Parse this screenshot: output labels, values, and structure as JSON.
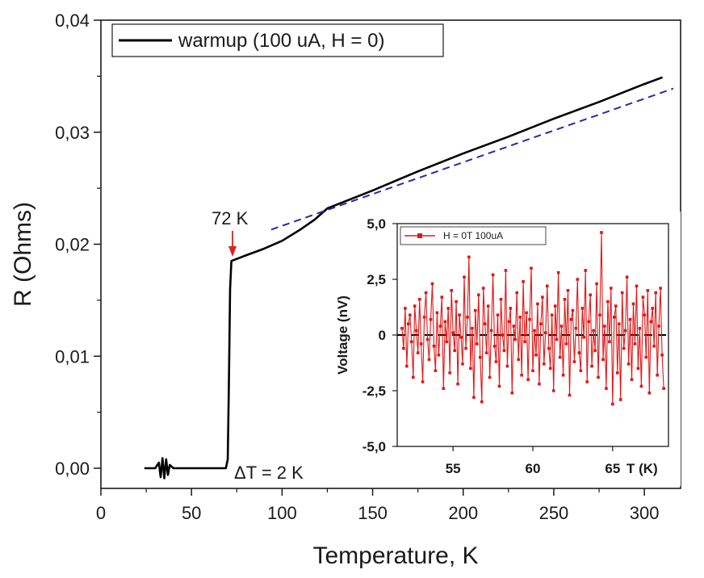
{
  "chart_data": [
    {
      "name": "main",
      "type": "line",
      "xlabel": "Temperature, K",
      "ylabel": "R (Ohms)",
      "xlim": [
        0,
        320
      ],
      "ylim": [
        -0.0018,
        0.04
      ],
      "x_ticks": [
        0,
        50,
        100,
        150,
        200,
        250,
        300
      ],
      "x_tick_labels": [
        "0",
        "50",
        "100",
        "150",
        "200",
        "250",
        "300"
      ],
      "y_ticks": [
        0,
        0.01,
        0.02,
        0.03,
        0.04
      ],
      "y_tick_labels": [
        "0,00",
        "0,01",
        "0,02",
        "0,03",
        "0,04"
      ],
      "legend": {
        "label": "warmup (100 uA, H = 0)",
        "placement": "top-left"
      },
      "colors": {
        "data": "#000000",
        "fit": "#2a2aa8",
        "marker": "#e02020"
      },
      "series": [
        {
          "name": "warmup (100 uA, H = 0)",
          "x": [
            24,
            30,
            32,
            33,
            34,
            35,
            36,
            37,
            38,
            40,
            50,
            60,
            69,
            70,
            70.7,
            71.3,
            72,
            80,
            90,
            100,
            110,
            118,
            125,
            150,
            175,
            200,
            225,
            250,
            275,
            300,
            310
          ],
          "y": [
            0,
            0,
            0.0005,
            -0.0008,
            0.0009,
            -0.0009,
            0.0008,
            -0.0006,
            0.0003,
            0,
            0,
            0,
            0,
            0.0008,
            0.008,
            0.016,
            0.0185,
            0.019,
            0.0196,
            0.0203,
            0.0213,
            0.0222,
            0.0232,
            0.0248,
            0.0265,
            0.0281,
            0.0296,
            0.0312,
            0.0327,
            0.0343,
            0.0349
          ]
        }
      ],
      "fit_line": {
        "name": "linear fit",
        "style": "dashed",
        "x": [
          94,
          316
        ],
        "y": [
          0.0213,
          0.0339
        ]
      },
      "annotations": [
        {
          "text": "72 K",
          "x": 72,
          "y": 0.0185,
          "arrow": true
        },
        {
          "text": "ΔT = 2 K"
        }
      ]
    },
    {
      "name": "inset",
      "type": "line",
      "ylabel": "Voltage  (nV)",
      "xlabel": "T (K)",
      "xlim": [
        51.5,
        68.5
      ],
      "ylim": [
        -5,
        5
      ],
      "x_ticks": [
        55,
        60,
        65
      ],
      "x_tick_labels": [
        "55",
        "60",
        "65"
      ],
      "y_ticks": [
        5,
        2.5,
        0,
        -2.5,
        -5
      ],
      "y_tick_labels": [
        "5,0",
        "2,5",
        "0",
        "-2,5",
        "-5,0"
      ],
      "legend": {
        "label": "H = 0T 100uA",
        "placement": "top-left"
      },
      "zero_line": {
        "y": 0,
        "style": "dashed"
      },
      "colors": {
        "data": "#e01818"
      },
      "series": [
        {
          "name": "H = 0T 100uA",
          "x_start": 51.8,
          "x_step": 0.1,
          "values": [
            0.3,
            -0.6,
            1.2,
            -1.4,
            0.5,
            0.9,
            -0.3,
            -1.9,
            1.3,
            0.2,
            -0.8,
            1.6,
            -0.4,
            -2.1,
            0.8,
            1.9,
            -0.2,
            -1.1,
            0.7,
            2.3,
            -0.5,
            -1.6,
            1.0,
            -0.9,
            0.4,
            1.7,
            -2.4,
            0.6,
            -0.3,
            1.2,
            -1.7,
            2.0,
            0.1,
            -0.7,
            1.5,
            -2.2,
            0.9,
            -0.1,
            -1.3,
            2.6,
            -0.6,
            0.8,
            3.5,
            -1.5,
            0.3,
            -2.8,
            1.1,
            -0.4,
            1.8,
            -1.0,
            -3.0,
            2.1,
            0.5,
            -0.8,
            1.3,
            -1.9,
            0.2,
            2.7,
            -0.5,
            -1.2,
            0.9,
            -2.3,
            1.6,
            0.0,
            -0.7,
            2.9,
            -1.4,
            0.6,
            1.2,
            -2.6,
            0.4,
            -0.2,
            1.9,
            -1.1,
            0.8,
            -1.8,
            2.4,
            -0.3,
            1.0,
            -2.0,
            0.7,
            3.0,
            -1.6,
            0.2,
            -0.9,
            1.4,
            -2.2,
            0.5,
            1.7,
            -1.3,
            0.1,
            2.2,
            -0.6,
            -1.5,
            0.9,
            -2.5,
            1.3,
            -0.2,
            2.8,
            -1.0,
            0.4,
            -1.8,
            1.6,
            -0.4,
            2.0,
            -2.7,
            0.7,
            1.1,
            -1.2,
            0.3,
            2.5,
            -0.8,
            -1.6,
            1.2,
            -0.1,
            2.9,
            -2.1,
            0.6,
            1.8,
            -1.4,
            0.2,
            -0.7,
            2.3,
            -1.9,
            0.9,
            4.6,
            -1.1,
            0.4,
            -2.4,
            1.5,
            -0.3,
            2.1,
            -3.1,
            0.8,
            1.3,
            -1.7,
            0.5,
            -2.9,
            1.9,
            -0.6,
            0.2,
            2.6,
            -1.3,
            0.7,
            -2.0,
            1.4,
            -0.4,
            2.2,
            -1.5,
            0.3,
            -2.3,
            1.7,
            0.9,
            -1.0,
            2.0,
            -2.6,
            0.6,
            1.2,
            -0.5,
            1.9,
            -1.8,
            0.4,
            2.1,
            -0.9,
            -2.4
          ]
        }
      ]
    }
  ]
}
